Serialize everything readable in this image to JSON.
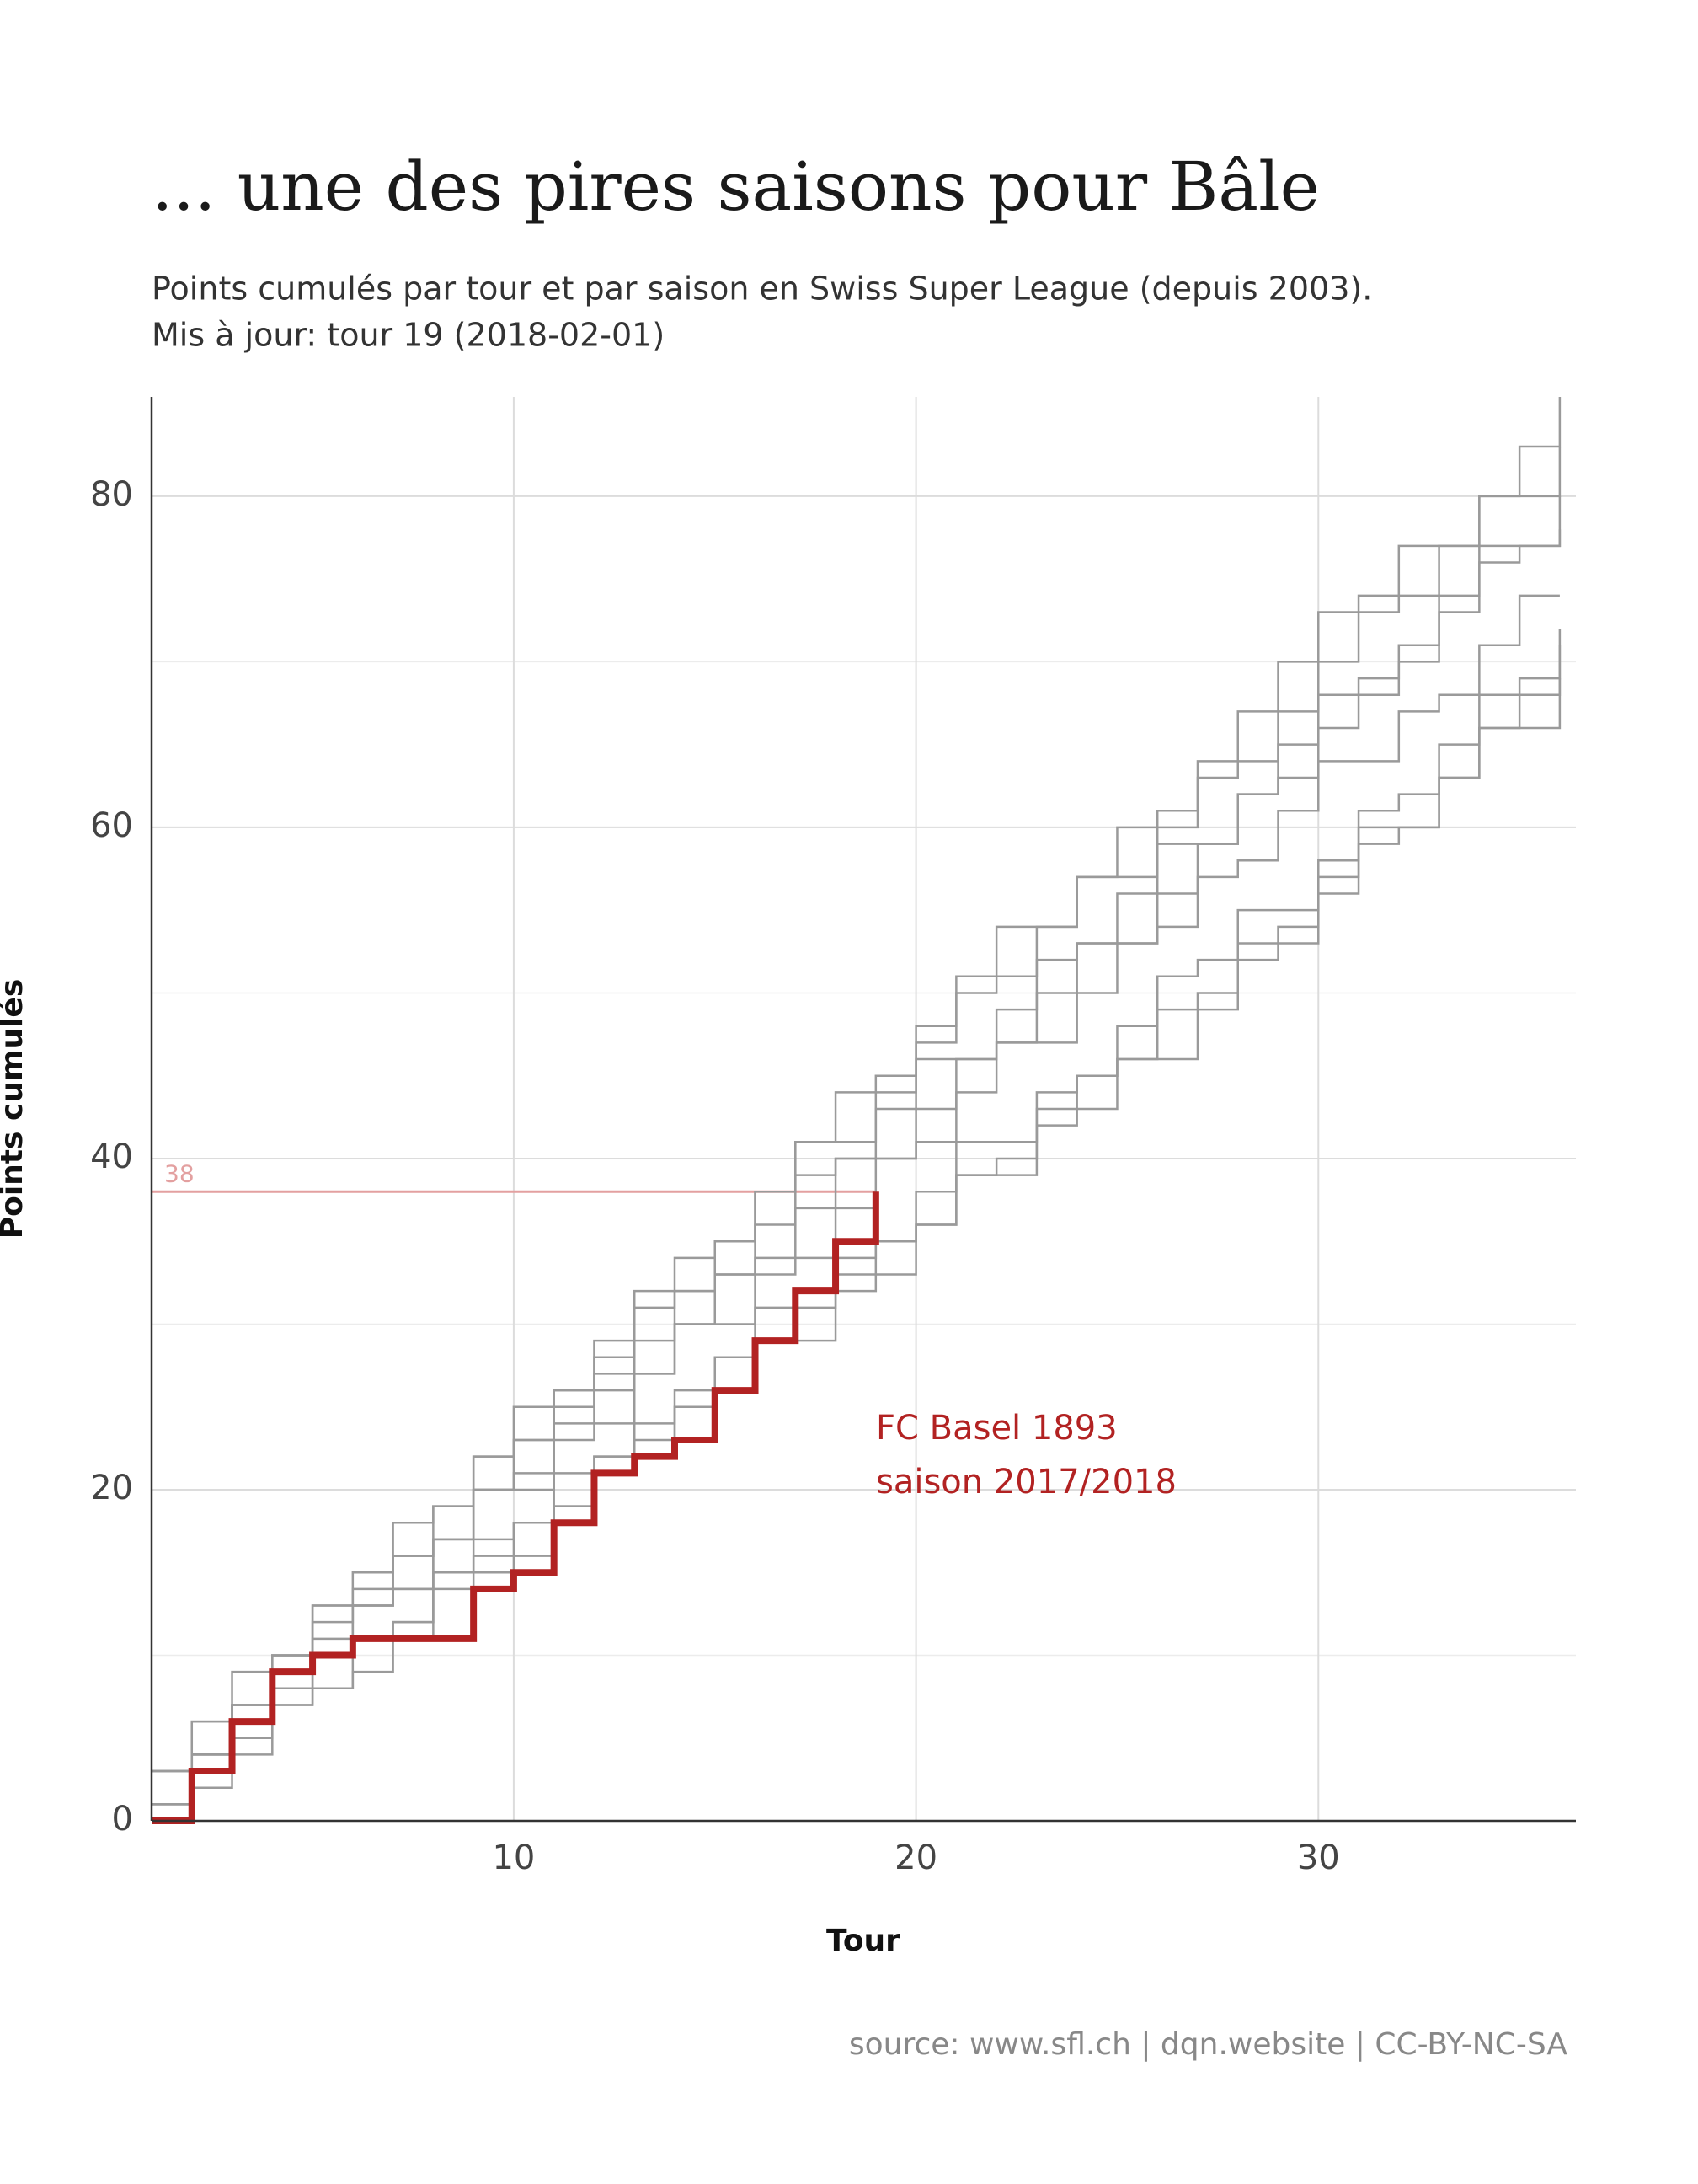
{
  "chart_data": {
    "type": "step",
    "title": "... une des pires saisons pour Bâle",
    "subtitle": [
      "Points cumulés par tour et par saison en Swiss Super League (depuis 2003).",
      "Mis à jour: tour 19 (2018-02-01)"
    ],
    "x_label": "Tour",
    "y_label": "Points cumulés",
    "source": "source: www.sfl.ch | dqn.website | CC-BY-NC-SA",
    "annotations": [
      "FC Basel 1893",
      "saison 2017/2018"
    ],
    "annotation_color": "#b22222",
    "reference_line": {
      "value": 38,
      "color": "#e3a0a0"
    },
    "xlim": [
      1,
      36.4
    ],
    "ylim": [
      0,
      86
    ],
    "xticks": [
      10,
      20,
      30
    ],
    "yticks": [
      0,
      20,
      40,
      60,
      80
    ],
    "y_minor_ticks": [
      10,
      30,
      50,
      70
    ],
    "grid": true,
    "x": [
      1,
      2,
      3,
      4,
      5,
      6,
      7,
      8,
      9,
      10,
      11,
      12,
      13,
      14,
      15,
      16,
      17,
      18,
      19,
      20,
      21,
      22,
      23,
      24,
      25,
      26,
      27,
      28,
      29,
      30,
      31,
      32,
      33,
      34,
      35,
      36
    ],
    "series": [
      {
        "color": "#9a9a9a",
        "values": [
          3,
          6,
          7,
          10,
          13,
          13,
          16,
          19,
          22,
          23,
          26,
          29,
          32,
          32,
          35,
          38,
          41,
          44,
          45,
          48,
          51,
          54,
          54,
          57,
          60,
          61,
          64,
          67,
          70,
          73,
          74,
          77,
          77,
          80,
          83,
          86
        ]
      },
      {
        "color": "#9a9a9a",
        "values": [
          3,
          6,
          9,
          9,
          12,
          15,
          18,
          19,
          22,
          25,
          25,
          28,
          31,
          34,
          35,
          38,
          41,
          41,
          44,
          47,
          50,
          51,
          54,
          57,
          57,
          60,
          63,
          64,
          67,
          70,
          73,
          74,
          77,
          80,
          80,
          83
        ]
      },
      {
        "color": "#9a9a9a",
        "values": [
          1,
          4,
          7,
          8,
          11,
          14,
          14,
          17,
          20,
          21,
          24,
          27,
          27,
          30,
          33,
          34,
          37,
          40,
          40,
          43,
          46,
          47,
          50,
          53,
          53,
          56,
          59,
          62,
          63,
          66,
          69,
          70,
          73,
          76,
          77,
          78
        ]
      },
      {
        "color": "#9a9a9a",
        "values": [
          3,
          4,
          7,
          10,
          10,
          13,
          14,
          17,
          20,
          20,
          23,
          24,
          27,
          30,
          30,
          33,
          34,
          37,
          40,
          41,
          44,
          47,
          47,
          50,
          53,
          54,
          57,
          58,
          61,
          64,
          64,
          67,
          68,
          71,
          74,
          74
        ]
      },
      {
        "color": "#9a9a9a",
        "values": [
          0,
          3,
          6,
          7,
          10,
          11,
          11,
          14,
          17,
          18,
          21,
          21,
          24,
          25,
          28,
          31,
          31,
          34,
          35,
          38,
          41,
          41,
          44,
          45,
          48,
          51,
          52,
          55,
          55,
          58,
          61,
          62,
          65,
          68,
          68,
          71
        ]
      },
      {
        "color": "#9a9a9a",
        "values": [
          1,
          2,
          5,
          8,
          8,
          9,
          12,
          15,
          16,
          16,
          19,
          22,
          23,
          26,
          26,
          29,
          32,
          33,
          33,
          36,
          39,
          40,
          43,
          43,
          46,
          49,
          50,
          53,
          54,
          57,
          60,
          60,
          63,
          66,
          66,
          69
        ]
      },
      {
        "color": "#9a9a9a",
        "values": [
          3,
          4,
          7,
          10,
          13,
          13,
          16,
          17,
          20,
          23,
          26,
          26,
          29,
          32,
          33,
          36,
          39,
          40,
          43,
          46,
          46,
          49,
          52,
          53,
          56,
          59,
          59,
          62,
          65,
          68,
          68,
          71,
          74,
          77,
          77,
          80
        ]
      },
      {
        "color": "#9a9a9a",
        "values": [
          1,
          4,
          4,
          7,
          8,
          11,
          12,
          15,
          15,
          18,
          19,
          22,
          22,
          25,
          28,
          29,
          29,
          32,
          35,
          36,
          39,
          39,
          42,
          45,
          46,
          46,
          49,
          52,
          53,
          56,
          59,
          60,
          63,
          66,
          69,
          72
        ]
      },
      {
        "color": "#b22222",
        "highlight": true,
        "values": [
          0,
          3,
          6,
          9,
          10,
          11,
          11,
          11,
          14,
          15,
          18,
          21,
          22,
          23,
          26,
          29,
          32,
          35,
          38,
          null,
          null,
          null,
          null,
          null,
          null,
          null,
          null,
          null,
          null,
          null,
          null,
          null,
          null,
          null,
          null,
          null
        ]
      }
    ]
  }
}
